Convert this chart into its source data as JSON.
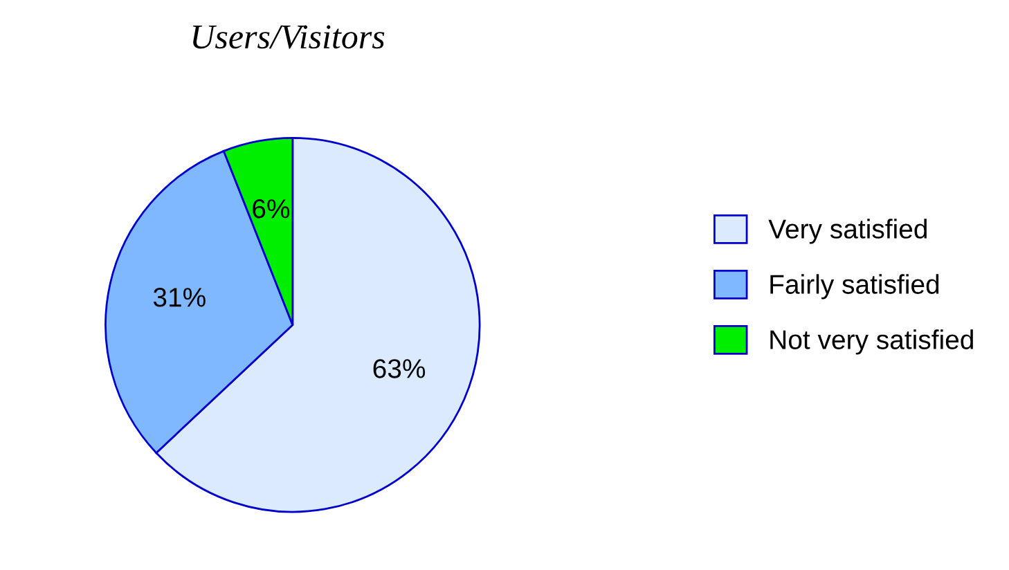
{
  "chart_data": {
    "type": "pie",
    "title": "Users/Visitors",
    "categories": [
      "Very satisfied",
      "Fairly satisfied",
      "Not very satisfied"
    ],
    "values": [
      63,
      31,
      6
    ],
    "value_labels": [
      "63%",
      "31%",
      "6%"
    ],
    "colors": [
      "#dbeaff",
      "#80b8ff",
      "#00ee00"
    ],
    "legend": "right"
  }
}
